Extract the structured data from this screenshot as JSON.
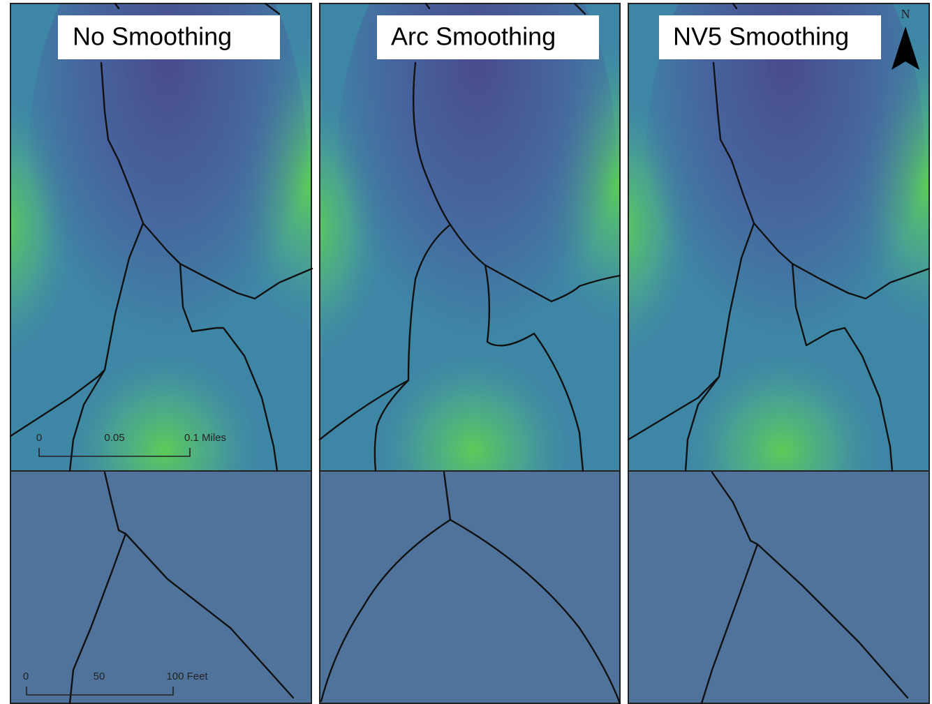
{
  "panels": [
    {
      "title": "No Smoothing"
    },
    {
      "title": "Arc Smoothing"
    },
    {
      "title": "NV5 Smoothing"
    }
  ],
  "scale_bars": [
    {
      "labels": [
        "0",
        "0.05",
        "0.1 Miles"
      ]
    },
    {
      "labels": [
        "0",
        "50",
        "100 Feet"
      ]
    }
  ],
  "north_arrow": {
    "label": "N"
  }
}
